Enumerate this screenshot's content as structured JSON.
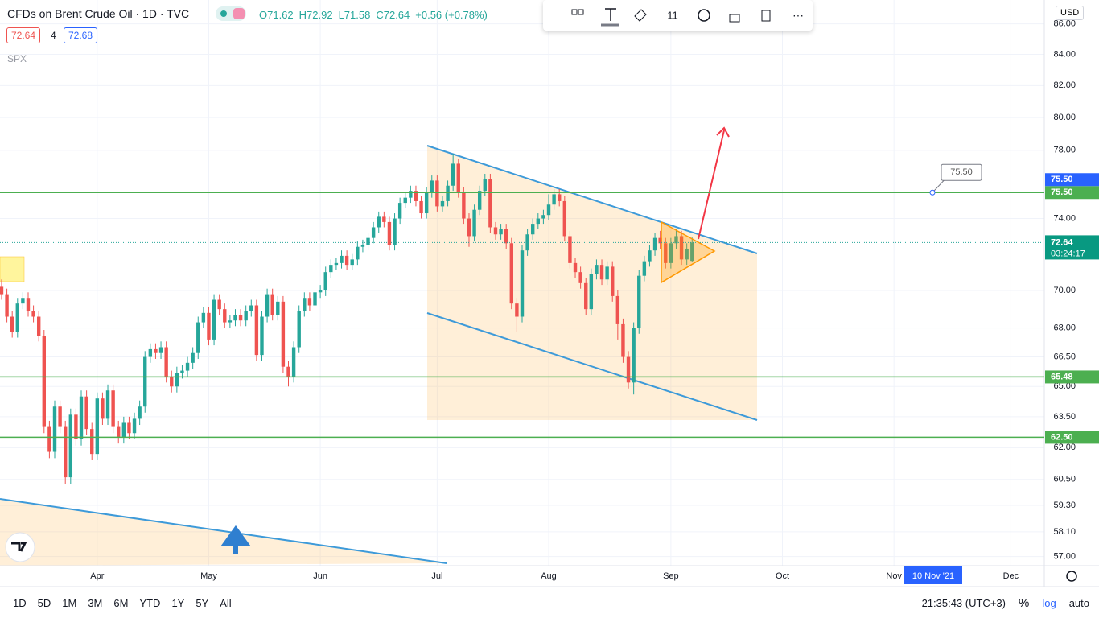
{
  "header": {
    "symbol": "CFDs on Brent Crude Oil · 1D · TVC",
    "ohlc": [
      "O71.62",
      "H72.92",
      "L71.58",
      "C72.64",
      "+0.56 (+0.78%)"
    ],
    "bid": "72.64",
    "spread": "4",
    "ask": "72.68",
    "compare": "SPX"
  },
  "toolbar": {
    "font_size": "11"
  },
  "currency": "USD",
  "crosshair_label": "10 Nov '21",
  "bottom_bar": {
    "ranges": [
      "1D",
      "5D",
      "1M",
      "3M",
      "6M",
      "YTD",
      "1Y",
      "5Y",
      "All"
    ],
    "time": "21:35:43 (UTC+3)",
    "percent": "%",
    "log": "log",
    "auto": "auto"
  },
  "chart_data": {
    "type": "candlestick",
    "log_scale": true,
    "grid": true,
    "up_color": "#26a69a",
    "down_color": "#ef5350",
    "xlim": [
      -18.3,
      178.3
    ],
    "xticks": [
      {
        "value": 0,
        "label": "Apr"
      },
      {
        "value": 21,
        "label": "May"
      },
      {
        "value": 42,
        "label": "Jun"
      },
      {
        "value": 64,
        "label": "Jul"
      },
      {
        "value": 85,
        "label": "Aug"
      },
      {
        "value": 108,
        "label": "Sep"
      },
      {
        "value": 129,
        "label": "Oct"
      },
      {
        "value": 150,
        "label": "Nov"
      },
      {
        "value": 172,
        "label": "Dec"
      }
    ],
    "ylim": [
      56.6,
      87.6
    ],
    "yticks": [
      {
        "value": 86,
        "label": "86.00"
      },
      {
        "value": 84,
        "label": "84.00"
      },
      {
        "value": 82,
        "label": "82.00"
      },
      {
        "value": 80,
        "label": "80.00"
      },
      {
        "value": 78,
        "label": "78.00"
      },
      {
        "value": 74,
        "label": "74.00"
      },
      {
        "value": 70,
        "label": "70.00"
      },
      {
        "value": 68,
        "label": "68.00"
      },
      {
        "value": 66.5,
        "label": "66.50"
      },
      {
        "value": 65,
        "label": "65.00"
      },
      {
        "value": 63.5,
        "label": "63.50"
      },
      {
        "value": 62,
        "label": "62.00"
      },
      {
        "value": 60.5,
        "label": "60.50"
      },
      {
        "value": 59.3,
        "label": "59.30"
      },
      {
        "value": 58.1,
        "label": "58.10"
      },
      {
        "value": 57,
        "label": "57.00"
      }
    ],
    "levels": [
      {
        "value": 75.5,
        "label": "75.50"
      },
      {
        "value": 65.48,
        "label": "65.48"
      },
      {
        "value": 62.5,
        "label": "62.50"
      }
    ],
    "level_color": "#4caf50",
    "callout": {
      "value": 75.5,
      "label": "75.50"
    },
    "last": {
      "value": 72.64,
      "label": "72.64",
      "countdown": "03:24:17"
    },
    "x": [
      -18,
      -17,
      -16,
      -15,
      -14,
      -13,
      -12,
      -11,
      -10,
      -9,
      -8,
      -7,
      -6,
      -5,
      -4,
      -3,
      -2,
      -1,
      0,
      1,
      2,
      3,
      4,
      5,
      6,
      7,
      8,
      9,
      10,
      11,
      12,
      13,
      14,
      15,
      16,
      17,
      18,
      19,
      20,
      21,
      22,
      23,
      24,
      25,
      26,
      27,
      28,
      29,
      30,
      31,
      32,
      33,
      34,
      35,
      36,
      37,
      38,
      39,
      40,
      41,
      42,
      43,
      44,
      45,
      46,
      47,
      48,
      49,
      50,
      51,
      52,
      53,
      54,
      55,
      56,
      57,
      58,
      59,
      60,
      61,
      62,
      63,
      64,
      65,
      66,
      67,
      68,
      69,
      70,
      71,
      72,
      73,
      74,
      75,
      76,
      77,
      78,
      79,
      80,
      81,
      82,
      83,
      84,
      85,
      86,
      87,
      88,
      89,
      90,
      91,
      92,
      93,
      94,
      95,
      96,
      97,
      98,
      99,
      100,
      101,
      102,
      103,
      104,
      105,
      106,
      107,
      108,
      109,
      110,
      111,
      112
    ],
    "ohlc": [
      [
        70.2,
        70.6,
        69.5,
        69.8
      ],
      [
        69.8,
        70.1,
        68.3,
        68.6
      ],
      [
        68.6,
        68.9,
        67.5,
        67.8
      ],
      [
        67.8,
        69.6,
        67.5,
        69.3
      ],
      [
        69.3,
        69.9,
        69.0,
        69.6
      ],
      [
        69.6,
        69.9,
        68.6,
        68.9
      ],
      [
        68.9,
        69.2,
        68.3,
        68.6
      ],
      [
        68.6,
        68.9,
        67.3,
        67.6
      ],
      [
        67.6,
        67.9,
        62.7,
        63.0
      ],
      [
        63.0,
        63.3,
        61.5,
        61.8
      ],
      [
        61.8,
        64.3,
        61.5,
        64.0
      ],
      [
        64.0,
        64.3,
        62.7,
        63.0
      ],
      [
        63.0,
        63.3,
        60.3,
        60.6
      ],
      [
        60.6,
        63.9,
        60.3,
        63.6
      ],
      [
        63.6,
        63.9,
        62.1,
        62.4
      ],
      [
        62.4,
        64.8,
        62.1,
        64.5
      ],
      [
        64.5,
        64.8,
        62.6,
        62.9
      ],
      [
        62.9,
        63.2,
        61.4,
        61.7
      ],
      [
        61.7,
        64.7,
        61.4,
        64.4
      ],
      [
        64.4,
        64.7,
        63.1,
        63.4
      ],
      [
        63.4,
        65.1,
        63.1,
        64.8
      ],
      [
        64.8,
        65.1,
        62.7,
        63.0
      ],
      [
        63.0,
        63.3,
        62.2,
        62.5
      ],
      [
        62.5,
        63.5,
        62.2,
        63.2
      ],
      [
        63.2,
        63.5,
        62.4,
        62.7
      ],
      [
        62.7,
        63.7,
        62.4,
        63.4
      ],
      [
        63.4,
        64.3,
        63.1,
        64.0
      ],
      [
        64.0,
        66.8,
        63.7,
        66.5
      ],
      [
        66.5,
        67.2,
        66.2,
        66.9
      ],
      [
        66.9,
        67.2,
        66.4,
        66.7
      ],
      [
        66.7,
        67.3,
        66.4,
        67.0
      ],
      [
        67.0,
        67.3,
        65.2,
        65.5
      ],
      [
        65.5,
        65.8,
        64.7,
        65.0
      ],
      [
        65.0,
        66.0,
        64.7,
        65.7
      ],
      [
        65.7,
        66.1,
        65.4,
        65.8
      ],
      [
        65.8,
        66.5,
        65.5,
        66.2
      ],
      [
        66.2,
        67.0,
        65.9,
        66.7
      ],
      [
        66.7,
        68.6,
        66.4,
        68.3
      ],
      [
        68.3,
        69.1,
        68.0,
        68.8
      ],
      [
        68.8,
        69.1,
        67.1,
        67.4
      ],
      [
        67.4,
        69.8,
        67.1,
        69.5
      ],
      [
        69.5,
        69.8,
        68.7,
        69.0
      ],
      [
        69.0,
        69.3,
        68.0,
        68.3
      ],
      [
        68.3,
        68.7,
        68.0,
        68.4
      ],
      [
        68.4,
        69.0,
        68.1,
        68.7
      ],
      [
        68.7,
        69.0,
        68.1,
        68.4
      ],
      [
        68.4,
        69.2,
        68.1,
        68.9
      ],
      [
        68.9,
        69.5,
        68.6,
        69.2
      ],
      [
        69.2,
        69.5,
        66.3,
        66.6
      ],
      [
        66.6,
        68.9,
        66.3,
        68.6
      ],
      [
        68.6,
        70.1,
        68.3,
        69.8
      ],
      [
        69.8,
        70.1,
        68.4,
        68.7
      ],
      [
        68.7,
        69.7,
        68.4,
        69.4
      ],
      [
        69.4,
        69.7,
        65.7,
        66.0
      ],
      [
        66.0,
        66.3,
        65.0,
        65.5
      ],
      [
        65.5,
        67.3,
        65.2,
        67.0
      ],
      [
        67.0,
        69.2,
        66.7,
        68.9
      ],
      [
        68.9,
        69.9,
        68.6,
        69.6
      ],
      [
        69.6,
        69.9,
        68.9,
        69.2
      ],
      [
        69.2,
        70.2,
        68.9,
        69.9
      ],
      [
        69.9,
        70.3,
        69.6,
        70.0
      ],
      [
        70.0,
        71.3,
        69.7,
        71.0
      ],
      [
        71.0,
        71.7,
        70.7,
        71.4
      ],
      [
        71.4,
        71.8,
        71.1,
        71.5
      ],
      [
        71.5,
        72.2,
        71.2,
        71.9
      ],
      [
        71.9,
        72.2,
        71.1,
        71.4
      ],
      [
        71.4,
        72.0,
        71.1,
        71.7
      ],
      [
        71.7,
        72.7,
        71.4,
        72.4
      ],
      [
        72.4,
        72.8,
        72.1,
        72.5
      ],
      [
        72.5,
        73.2,
        72.2,
        72.9
      ],
      [
        72.9,
        73.8,
        72.6,
        73.5
      ],
      [
        73.5,
        74.4,
        73.2,
        74.1
      ],
      [
        74.1,
        74.4,
        73.5,
        73.8
      ],
      [
        73.8,
        74.1,
        72.2,
        72.5
      ],
      [
        72.5,
        74.3,
        72.2,
        74.0
      ],
      [
        74.0,
        75.2,
        73.7,
        74.9
      ],
      [
        74.9,
        75.5,
        74.6,
        75.2
      ],
      [
        75.2,
        75.9,
        74.9,
        75.6
      ],
      [
        75.6,
        75.9,
        74.7,
        75.0
      ],
      [
        75.0,
        75.3,
        74.0,
        74.3
      ],
      [
        74.3,
        75.8,
        74.0,
        75.5
      ],
      [
        75.5,
        76.5,
        75.2,
        76.2
      ],
      [
        76.2,
        76.5,
        74.4,
        74.7
      ],
      [
        74.7,
        75.3,
        74.4,
        75.0
      ],
      [
        75.0,
        76.2,
        74.7,
        75.9
      ],
      [
        75.9,
        77.8,
        75.6,
        77.2
      ],
      [
        77.2,
        77.5,
        75.2,
        75.5
      ],
      [
        75.5,
        75.8,
        73.7,
        74.0
      ],
      [
        74.0,
        74.3,
        72.4,
        73.0
      ],
      [
        73.0,
        74.8,
        72.7,
        74.5
      ],
      [
        74.5,
        75.9,
        74.2,
        75.6
      ],
      [
        75.6,
        76.6,
        75.3,
        76.3
      ],
      [
        76.3,
        76.6,
        73.2,
        73.5
      ],
      [
        73.5,
        73.8,
        72.8,
        73.1
      ],
      [
        73.1,
        73.7,
        72.8,
        73.4
      ],
      [
        73.4,
        73.7,
        72.3,
        72.6
      ],
      [
        72.6,
        72.9,
        69.0,
        69.3
      ],
      [
        69.3,
        69.6,
        67.8,
        68.6
      ],
      [
        68.6,
        72.5,
        68.3,
        72.2
      ],
      [
        72.2,
        73.4,
        71.9,
        73.1
      ],
      [
        73.1,
        74.0,
        72.8,
        73.7
      ],
      [
        73.7,
        74.3,
        73.4,
        74.0
      ],
      [
        74.0,
        74.5,
        73.7,
        74.2
      ],
      [
        74.2,
        75.4,
        73.9,
        74.8
      ],
      [
        74.8,
        75.7,
        74.5,
        75.4
      ],
      [
        75.4,
        75.7,
        74.7,
        75.0
      ],
      [
        75.0,
        75.3,
        72.7,
        73.0
      ],
      [
        73.0,
        73.3,
        71.2,
        71.5
      ],
      [
        71.5,
        71.8,
        70.7,
        71.0
      ],
      [
        71.0,
        71.3,
        70.1,
        70.4
      ],
      [
        70.4,
        70.7,
        68.7,
        69.0
      ],
      [
        69.0,
        71.2,
        68.7,
        70.9
      ],
      [
        70.9,
        71.7,
        70.6,
        71.4
      ],
      [
        71.4,
        71.7,
        70.3,
        70.6
      ],
      [
        70.6,
        71.6,
        70.3,
        71.3
      ],
      [
        71.3,
        71.6,
        69.4,
        69.7
      ],
      [
        69.7,
        70.0,
        67.4,
        68.2
      ],
      [
        68.2,
        68.5,
        66.2,
        66.5
      ],
      [
        66.5,
        66.8,
        64.9,
        65.2
      ],
      [
        65.2,
        68.3,
        64.6,
        68.0
      ],
      [
        68.0,
        71.1,
        67.7,
        70.8
      ],
      [
        70.8,
        71.9,
        70.5,
        71.6
      ],
      [
        71.6,
        72.5,
        71.3,
        72.2
      ],
      [
        72.2,
        73.2,
        71.9,
        72.9
      ],
      [
        72.9,
        73.3,
        72.3,
        72.6
      ],
      [
        72.6,
        72.9,
        71.2,
        71.5
      ],
      [
        71.5,
        72.9,
        71.2,
        72.6
      ],
      [
        72.6,
        73.4,
        72.3,
        73.0
      ],
      [
        73.0,
        73.3,
        71.4,
        71.7
      ],
      [
        71.7,
        72.6,
        71.4,
        72.3
      ],
      [
        71.62,
        72.92,
        71.58,
        72.64
      ]
    ]
  }
}
